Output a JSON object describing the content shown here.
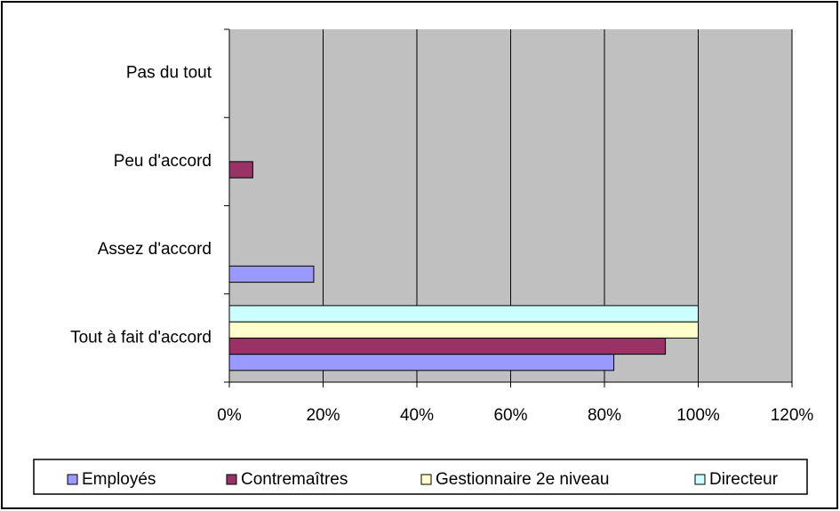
{
  "chart_data": {
    "type": "hbar",
    "categories": [
      "Pas du tout",
      "Peu d'accord",
      "Assez d'accord",
      "Tout à fait d'accord"
    ],
    "series": [
      {
        "name": "Employés",
        "color": "#9999ff",
        "values": [
          0,
          0,
          18,
          82
        ]
      },
      {
        "name": "Contremaîtres",
        "color": "#993366",
        "values": [
          0,
          5,
          0,
          93
        ]
      },
      {
        "name": "Gestionnaire 2e niveau",
        "color": "#ffffcc",
        "values": [
          0,
          0,
          0,
          100
        ]
      },
      {
        "name": "Directeur",
        "color": "#ccffff",
        "values": [
          0,
          0,
          0,
          100
        ]
      }
    ],
    "xlim": [
      0,
      120
    ],
    "xticks": [
      {
        "value": 0,
        "label": "0%"
      },
      {
        "value": 20,
        "label": "20%"
      },
      {
        "value": 40,
        "label": "40%"
      },
      {
        "value": 60,
        "label": "60%"
      },
      {
        "value": 80,
        "label": "80%"
      },
      {
        "value": 100,
        "label": "100%"
      },
      {
        "value": 120,
        "label": "120%"
      }
    ],
    "grid": true,
    "legend": "bottom"
  }
}
